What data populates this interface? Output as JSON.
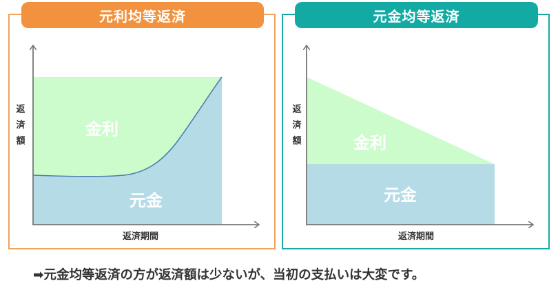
{
  "left_chart": {
    "title": "元利均等返済",
    "y_label_chars": [
      "返",
      "済",
      "額"
    ],
    "x_label": "返済期間",
    "interest_label": "金利",
    "principal_label": "元金"
  },
  "right_chart": {
    "title": "元金均等返済",
    "y_label_chars": [
      "返",
      "済",
      "額"
    ],
    "x_label": "返済期間",
    "interest_label": "金利",
    "principal_label": "元金"
  },
  "caption": "➡元金均等返済の方が返済額は少ないが、当初の支払いは大変です。",
  "colors": {
    "left_border": "#f4a15a",
    "left_tab": "#f2913e",
    "right_border": "#14a9a2",
    "right_tab": "#13aaa4",
    "interest_fill": "#ccfccc",
    "principal_fill": "#b5dbe6",
    "boundary_line": "#4a7fb0",
    "axis": "#777777"
  }
}
